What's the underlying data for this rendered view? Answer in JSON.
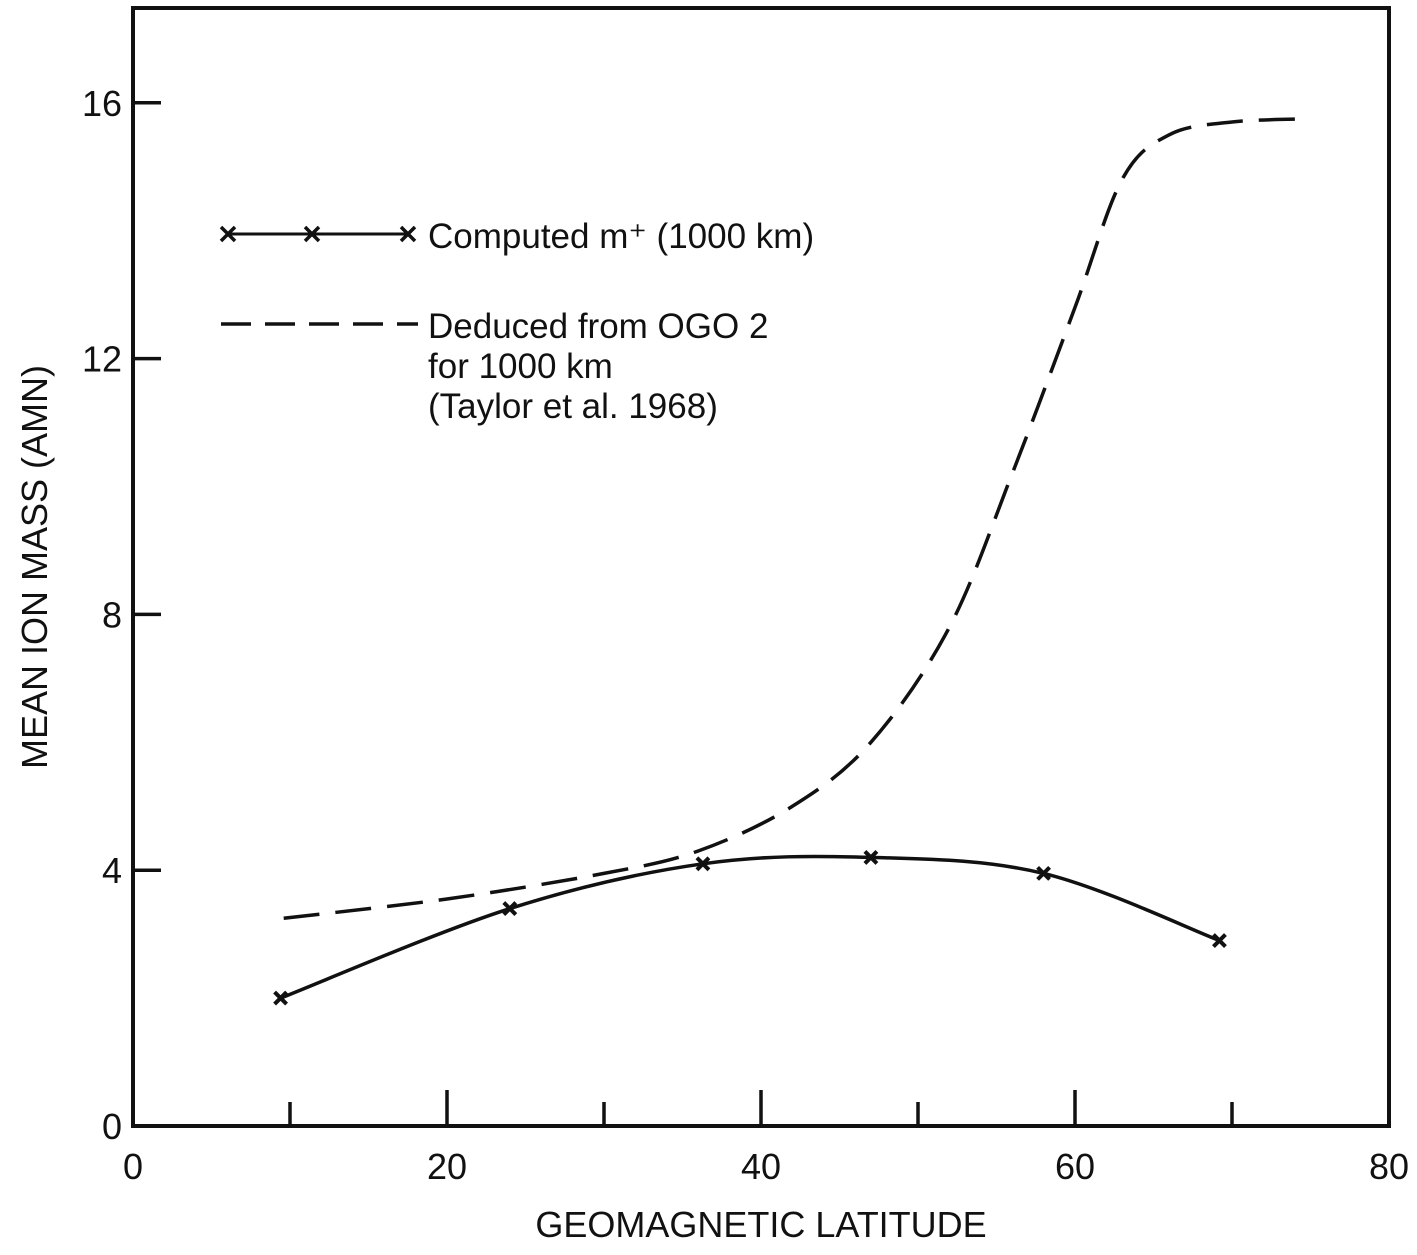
{
  "chart_data": {
    "type": "line",
    "xlabel": "GEOMAGNETIC LATITUDE",
    "ylabel": "MEAN ION MASS (AMN)",
    "xlim": [
      0,
      80
    ],
    "ylim": [
      0,
      17.6
    ],
    "x_ticks": [
      0,
      20,
      40,
      60,
      80
    ],
    "x_minor_ticks": [
      10,
      20,
      30,
      40,
      50,
      60,
      70
    ],
    "y_ticks": [
      0,
      4,
      8,
      12,
      16
    ],
    "grid": false,
    "legend_position": "upper-left",
    "series": [
      {
        "name": "Computed m⁺ (1000 km)",
        "style": "solid-x-markers",
        "color": "#111111",
        "points": [
          [
            9.4,
            2.0
          ],
          [
            24.0,
            3.4
          ],
          [
            36.3,
            4.1
          ],
          [
            47.0,
            4.2
          ],
          [
            58.0,
            3.95
          ],
          [
            69.2,
            2.9
          ]
        ]
      },
      {
        "name": "Deduced from OGO 2 for 1000 km (Taylor et al. 1968)",
        "style": "dashed",
        "color": "#111111",
        "points": [
          [
            9.6,
            3.25
          ],
          [
            20,
            3.55
          ],
          [
            30,
            3.95
          ],
          [
            36,
            4.3
          ],
          [
            42,
            5.0
          ],
          [
            47,
            6.0
          ],
          [
            52,
            7.8
          ],
          [
            56,
            10.2
          ],
          [
            60,
            12.8
          ],
          [
            63,
            14.8
          ],
          [
            66,
            15.5
          ],
          [
            70,
            15.7
          ],
          [
            75,
            15.75
          ]
        ]
      }
    ],
    "legend": {
      "series_1_label": "Computed m⁺ (1000 km)",
      "series_2_lines": [
        "Deduced from OGO 2",
        "for 1000 km",
        "(Taylor et al. 1968)"
      ]
    }
  }
}
